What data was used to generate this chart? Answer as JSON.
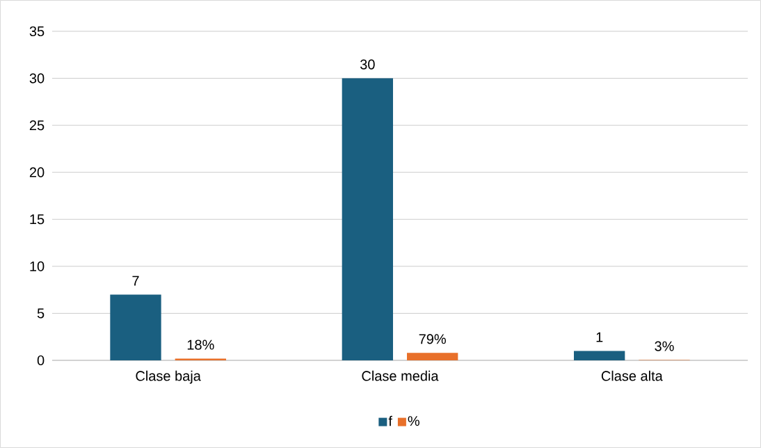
{
  "chart_data": {
    "type": "bar",
    "categories": [
      "Clase baja",
      "Clase media",
      "Clase alta"
    ],
    "series": [
      {
        "name": "f",
        "color": "#1a5f80",
        "values": [
          7,
          30,
          1
        ],
        "value_labels": [
          "7",
          "30",
          "1"
        ]
      },
      {
        "name": "%",
        "color": "#e8702a",
        "values": [
          0.18,
          0.79,
          0.03
        ],
        "value_labels": [
          "18%",
          "79%",
          "3%"
        ]
      }
    ],
    "ylim": [
      0,
      35
    ],
    "yticks": [
      0,
      5,
      10,
      15,
      20,
      25,
      30,
      35
    ],
    "grid": "y",
    "legend": "bottom"
  }
}
